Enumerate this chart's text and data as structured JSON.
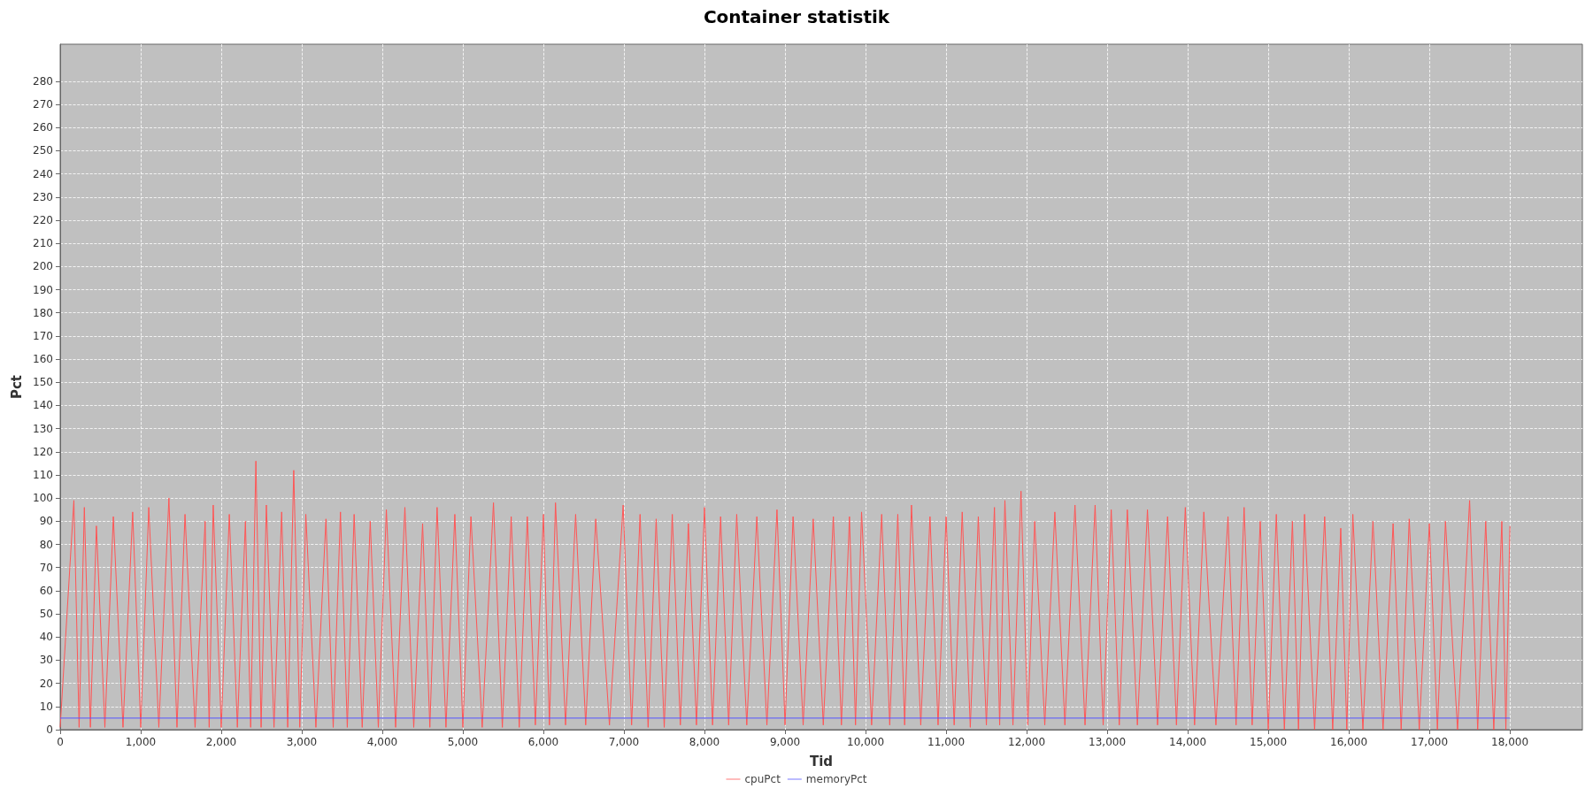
{
  "chart_data": {
    "type": "line",
    "title": "Container statistik",
    "xlabel": "Tid",
    "ylabel": "Pct",
    "xlim": [
      0,
      18900
    ],
    "xticks": [
      0,
      {
        "value": 1000,
        "label": "1,000"
      },
      {
        "value": 2000,
        "label": "2,000"
      },
      {
        "value": 3000,
        "label": "3,000"
      },
      {
        "value": 4000,
        "label": "4,000"
      },
      {
        "value": 5000,
        "label": "5,000"
      },
      {
        "value": 6000,
        "label": "6,000"
      },
      {
        "value": 7000,
        "label": "7,000"
      },
      {
        "value": 8000,
        "label": "8,000"
      },
      {
        "value": 9000,
        "label": "9,000"
      },
      {
        "value": 10000,
        "label": "10,000"
      },
      {
        "value": 11000,
        "label": "11,000"
      },
      {
        "value": 12000,
        "label": "12,000"
      },
      {
        "value": 13000,
        "label": "13,000"
      },
      {
        "value": 14000,
        "label": "14,000"
      },
      {
        "value": 15000,
        "label": "15,000"
      },
      {
        "value": 16000,
        "label": "16,000"
      },
      {
        "value": 17000,
        "label": "17,000"
      },
      {
        "value": 18000,
        "label": "18,000"
      }
    ],
    "ylim": [
      0,
      296
    ],
    "yticks": [
      0,
      10,
      20,
      30,
      40,
      50,
      60,
      70,
      80,
      90,
      100,
      110,
      120,
      130,
      140,
      150,
      160,
      170,
      180,
      190,
      200,
      210,
      220,
      230,
      240,
      250,
      260,
      270,
      280
    ],
    "grid": true,
    "legend": "bottom",
    "marker": "none",
    "line_style": "solid",
    "series": [
      {
        "name": "cpuPct",
        "color": "#ff5555",
        "x": [
          0,
          170,
          235,
          300,
          375,
          450,
          555,
          660,
          780,
          900,
          1000,
          1100,
          1225,
          1350,
          1450,
          1550,
          1675,
          1800,
          1850,
          1900,
          2000,
          2100,
          2200,
          2300,
          2365,
          2430,
          2495,
          2560,
          2655,
          2750,
          2825,
          2900,
          2975,
          3050,
          3175,
          3300,
          3390,
          3480,
          3565,
          3650,
          3750,
          3850,
          3950,
          4050,
          4165,
          4280,
          4390,
          4500,
          4590,
          4680,
          4790,
          4900,
          5000,
          5100,
          5240,
          5380,
          5490,
          5600,
          5700,
          5800,
          5900,
          6000,
          6075,
          6150,
          6275,
          6400,
          6525,
          6650,
          6820,
          6990,
          7095,
          7200,
          7300,
          7400,
          7500,
          7600,
          7700,
          7800,
          7900,
          8000,
          8100,
          8200,
          8300,
          8400,
          8525,
          8650,
          8775,
          8900,
          9000,
          9100,
          9225,
          9350,
          9475,
          9600,
          9700,
          9800,
          9875,
          9950,
          10075,
          10200,
          10300,
          10400,
          10485,
          10570,
          10685,
          10800,
          10900,
          11000,
          11100,
          11200,
          11300,
          11400,
          11500,
          11600,
          11665,
          11730,
          11830,
          11930,
          12015,
          12100,
          12225,
          12350,
          12475,
          12600,
          12725,
          12850,
          12950,
          13050,
          13150,
          13250,
          13375,
          13500,
          13625,
          13750,
          13860,
          13970,
          14085,
          14200,
          14350,
          14500,
          14600,
          14700,
          14800,
          14900,
          15000,
          15100,
          15200,
          15300,
          15375,
          15450,
          15575,
          15700,
          15800,
          15900,
          15975,
          16050,
          16175,
          16300,
          16425,
          16550,
          16650,
          16750,
          16875,
          17000,
          17100,
          17200,
          17350,
          17500,
          17600,
          17700,
          17800,
          17900,
          17950,
          18000
        ],
        "values": [
          1,
          99,
          1,
          96,
          1,
          88,
          1,
          92,
          1,
          94,
          1,
          96,
          1,
          100,
          1,
          93,
          1,
          90,
          1,
          97,
          1,
          93,
          1,
          90,
          1,
          116,
          1,
          97,
          1,
          94,
          1,
          112,
          1,
          93,
          1,
          91,
          1,
          94,
          1,
          93,
          1,
          90,
          1,
          95,
          1,
          96,
          1,
          89,
          1,
          96,
          1,
          93,
          1,
          92,
          1,
          98,
          1,
          92,
          1,
          92,
          2,
          93,
          2,
          98,
          2,
          93,
          2,
          91,
          2,
          97,
          2,
          93,
          1,
          91,
          1,
          93,
          2,
          89,
          2,
          96,
          2,
          92,
          2,
          93,
          2,
          92,
          2,
          95,
          2,
          92,
          2,
          91,
          2,
          92,
          2,
          92,
          2,
          94,
          2,
          93,
          2,
          93,
          2,
          97,
          2,
          92,
          2,
          92,
          2,
          94,
          1,
          92,
          2,
          96,
          2,
          99,
          2,
          103,
          2,
          90,
          2,
          94,
          2,
          97,
          2,
          97,
          2,
          95,
          2,
          95,
          2,
          95,
          2,
          92,
          2,
          96,
          2,
          94,
          2,
          92,
          2,
          96,
          2,
          90,
          0,
          93,
          0,
          90,
          0,
          93,
          0,
          92,
          0,
          87,
          0,
          93,
          0,
          90,
          0,
          89,
          0,
          91,
          0,
          89,
          0,
          90,
          0,
          99,
          0,
          90,
          0,
          90,
          0,
          88
        ]
      },
      {
        "name": "memoryPct",
        "color": "#5555ff",
        "x": [
          0,
          18000
        ],
        "values": [
          5,
          5
        ]
      }
    ]
  }
}
